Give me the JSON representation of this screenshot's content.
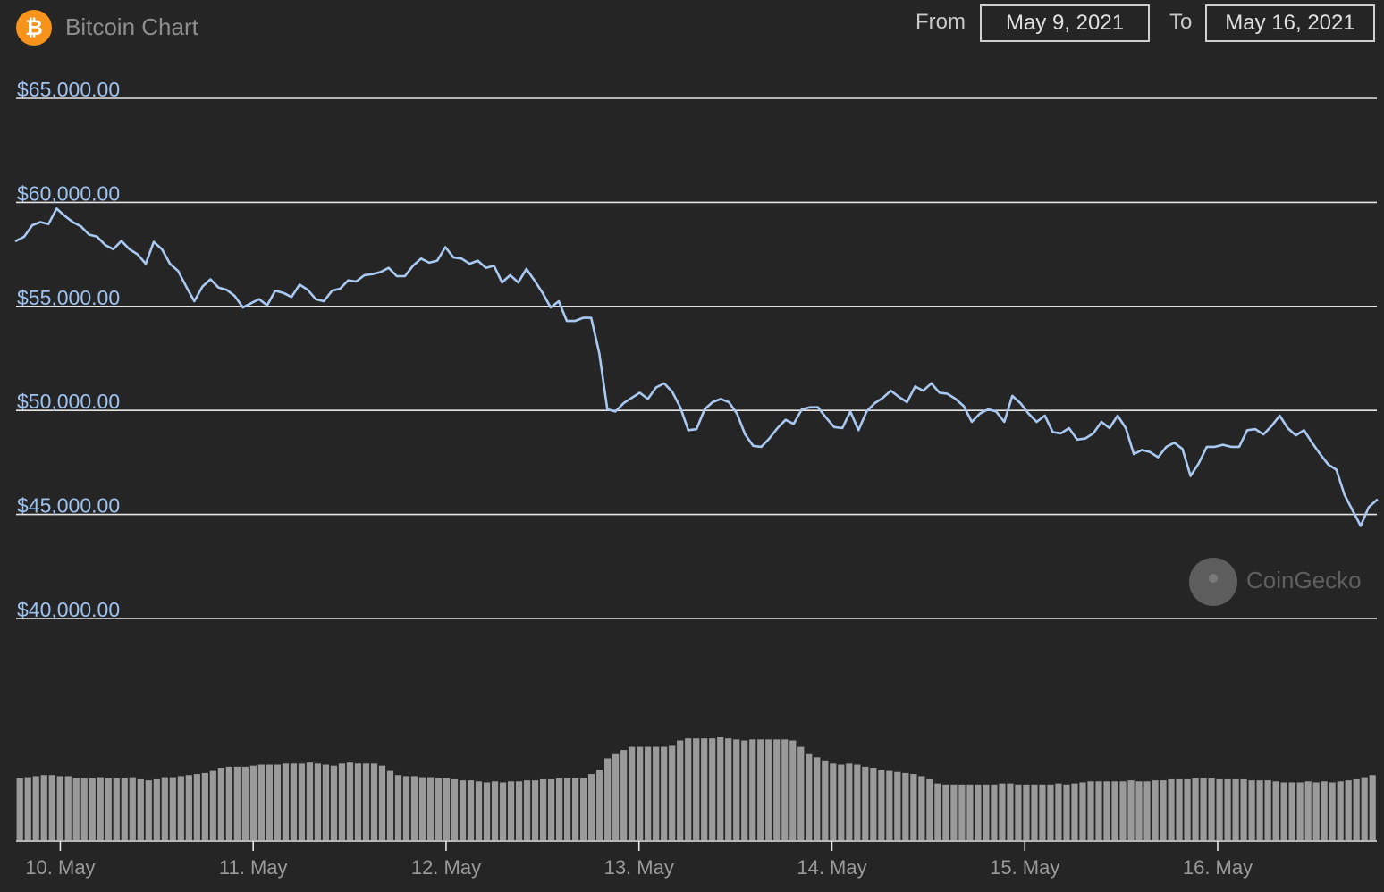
{
  "header": {
    "logo_glyph": "₿",
    "title": "Bitcoin Chart",
    "from_label": "From",
    "from_date": "May 9, 2021",
    "to_label": "To",
    "to_date": "May 16, 2021"
  },
  "watermark": {
    "text": "CoinGecko"
  },
  "colors": {
    "background": "#252525",
    "price_line": "#a9c9f2",
    "y_labels": "#9ec3f0",
    "volume_bars": "#9a9a9a",
    "gridlines": "#e6e6e6",
    "x_labels": "#9a9a9a",
    "bitcoin_orange": "#f7931a"
  },
  "chart_data": [
    {
      "type": "line",
      "x_ticks": [
        "10. May",
        "11. May",
        "12. May",
        "13. May",
        "14. May",
        "15. May",
        "16. May"
      ],
      "x_tick_hours": [
        24,
        48,
        72,
        96,
        120,
        144,
        168
      ],
      "x_range_hours": [
        18.5,
        187.8
      ],
      "y_ticks": [
        "$65,000.00",
        "$60,000.00",
        "$55,000.00",
        "$50,000.00",
        "$45,000.00",
        "$40,000.00"
      ],
      "y_tick_values": [
        65000,
        60000,
        55000,
        50000,
        45000,
        40000
      ],
      "ylim": [
        40000,
        65000
      ],
      "grid": true,
      "legend": false,
      "series": [
        {
          "values": [
            58150,
            58350,
            58900,
            59050,
            58950,
            59700,
            59350,
            59050,
            58850,
            58450,
            58350,
            57950,
            57750,
            58150,
            57750,
            57500,
            57050,
            58100,
            57750,
            57050,
            56700,
            55950,
            55250,
            55950,
            56300,
            55900,
            55800,
            55500,
            54950,
            55150,
            55350,
            55050,
            55750,
            55650,
            55450,
            56050,
            55800,
            55350,
            55250,
            55750,
            55850,
            56250,
            56200,
            56500,
            56550,
            56650,
            56850,
            56450,
            56450,
            56950,
            57300,
            57100,
            57200,
            57850,
            57350,
            57300,
            57050,
            57200,
            56850,
            56950,
            56150,
            56500,
            56150,
            56800,
            56250,
            55650,
            54950,
            55250,
            54300,
            54300,
            54450,
            54450,
            52750,
            50050,
            49950,
            50350,
            50600,
            50850,
            50550,
            51100,
            51300,
            50900,
            50150,
            49050,
            49100,
            50050,
            50400,
            50550,
            50400,
            49850,
            48850,
            48300,
            48250,
            48650,
            49150,
            49550,
            49350,
            50050,
            50150,
            50150,
            49650,
            49200,
            49150,
            49950,
            49050,
            49950,
            50350,
            50600,
            50950,
            50650,
            50400,
            51150,
            50950,
            51300,
            50850,
            50800,
            50550,
            50200,
            49450,
            49850,
            50050,
            49950,
            49450,
            50700,
            50350,
            49850,
            49450,
            49750,
            48950,
            48900,
            49150,
            48600,
            48650,
            48900,
            49450,
            49150,
            49750,
            49150,
            47900,
            48100,
            48000,
            47750,
            48250,
            48450,
            48150,
            46850,
            47450,
            48250,
            48250,
            48350,
            48250,
            48250,
            49050,
            49100,
            48850,
            49250,
            49750,
            49150,
            48800,
            49050,
            48450,
            47900,
            47400,
            47150,
            45950,
            45200,
            44450,
            45350,
            45700
          ]
        }
      ]
    },
    {
      "type": "bar",
      "name": "volume",
      "values": [
        0.59,
        0.6,
        0.61,
        0.62,
        0.62,
        0.61,
        0.61,
        0.59,
        0.59,
        0.59,
        0.6,
        0.59,
        0.59,
        0.59,
        0.6,
        0.58,
        0.57,
        0.58,
        0.6,
        0.6,
        0.61,
        0.62,
        0.63,
        0.64,
        0.66,
        0.69,
        0.7,
        0.7,
        0.7,
        0.71,
        0.72,
        0.72,
        0.72,
        0.73,
        0.73,
        0.73,
        0.74,
        0.73,
        0.72,
        0.71,
        0.73,
        0.74,
        0.73,
        0.73,
        0.73,
        0.71,
        0.66,
        0.62,
        0.61,
        0.61,
        0.6,
        0.6,
        0.59,
        0.59,
        0.58,
        0.57,
        0.57,
        0.56,
        0.55,
        0.56,
        0.55,
        0.56,
        0.56,
        0.57,
        0.57,
        0.58,
        0.58,
        0.59,
        0.59,
        0.59,
        0.59,
        0.63,
        0.67,
        0.78,
        0.82,
        0.86,
        0.89,
        0.89,
        0.89,
        0.89,
        0.89,
        0.9,
        0.95,
        0.97,
        0.97,
        0.97,
        0.97,
        0.98,
        0.97,
        0.96,
        0.95,
        0.96,
        0.96,
        0.96,
        0.96,
        0.96,
        0.95,
        0.89,
        0.82,
        0.79,
        0.76,
        0.73,
        0.72,
        0.73,
        0.72,
        0.7,
        0.69,
        0.67,
        0.66,
        0.65,
        0.64,
        0.63,
        0.61,
        0.58,
        0.54,
        0.53,
        0.53,
        0.53,
        0.53,
        0.53,
        0.53,
        0.53,
        0.54,
        0.54,
        0.53,
        0.53,
        0.53,
        0.53,
        0.53,
        0.54,
        0.53,
        0.54,
        0.55,
        0.56,
        0.56,
        0.56,
        0.56,
        0.56,
        0.57,
        0.56,
        0.56,
        0.57,
        0.57,
        0.58,
        0.58,
        0.58,
        0.59,
        0.59,
        0.59,
        0.58,
        0.58,
        0.58,
        0.58,
        0.57,
        0.57,
        0.57,
        0.56,
        0.55,
        0.55,
        0.55,
        0.56,
        0.55,
        0.56,
        0.55,
        0.56,
        0.57,
        0.58,
        0.6,
        0.62
      ]
    }
  ]
}
